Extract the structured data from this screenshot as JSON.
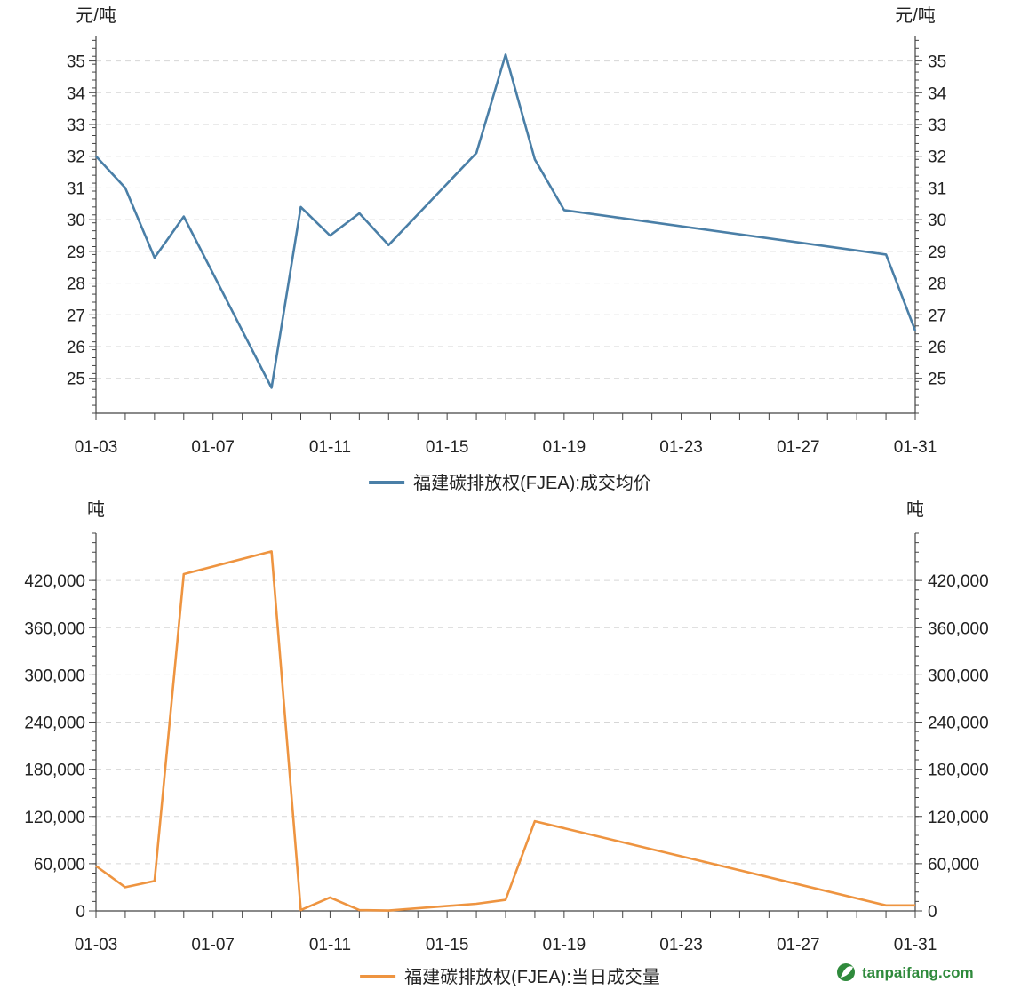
{
  "chart_data": [
    {
      "type": "line",
      "unit_left": "元/吨",
      "unit_right": "元/吨",
      "x_tick_labels": [
        "01-03",
        "01-07",
        "01-11",
        "01-15",
        "01-19",
        "01-23",
        "01-27",
        "01-31"
      ],
      "y_tick_labels": [
        "25",
        "26",
        "27",
        "28",
        "29",
        "30",
        "31",
        "32",
        "33",
        "34",
        "35"
      ],
      "ylim": [
        23.9,
        35.8
      ],
      "xlim": [
        3,
        31
      ],
      "grid": true,
      "legend_position": "bottom-center",
      "series": [
        {
          "name": "福建碳排放权(FJEA):成交均价",
          "color": "#4a7fa7",
          "x": [
            3,
            4,
            5,
            6,
            9,
            10,
            11,
            12,
            13,
            16,
            17,
            18,
            19,
            30,
            31
          ],
          "y": [
            32.0,
            31.0,
            28.8,
            30.1,
            24.7,
            30.4,
            29.5,
            30.2,
            29.2,
            32.1,
            35.2,
            31.9,
            30.3,
            28.9,
            26.5
          ]
        }
      ]
    },
    {
      "type": "line",
      "unit_left": "吨",
      "unit_right": "吨",
      "x_tick_labels": [
        "01-03",
        "01-07",
        "01-11",
        "01-15",
        "01-19",
        "01-23",
        "01-27",
        "01-31"
      ],
      "y_tick_labels": [
        "0",
        "60,000",
        "120,000",
        "180,000",
        "240,000",
        "300,000",
        "360,000",
        "420,000"
      ],
      "ylim": [
        0,
        480000
      ],
      "xlim": [
        3,
        31
      ],
      "grid": true,
      "legend_position": "bottom-center",
      "series": [
        {
          "name": "福建碳排放权(FJEA):当日成交量",
          "color": "#ee9440",
          "x": [
            3,
            4,
            5,
            6,
            9,
            10,
            11,
            12,
            13,
            16,
            17,
            18,
            30,
            31
          ],
          "y": [
            57000,
            30000,
            38000,
            428000,
            457000,
            1000,
            17000,
            1000,
            500,
            9000,
            14000,
            114000,
            7000,
            7000
          ]
        }
      ]
    }
  ],
  "watermark": {
    "text": "tanpaifang.com",
    "icon": "leaf-logo-icon",
    "color": "#2f8a3c"
  }
}
